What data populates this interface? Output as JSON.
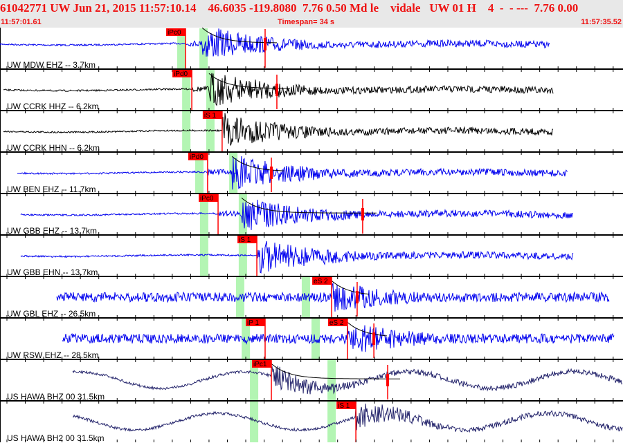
{
  "header": {
    "title": "61042771 UW Jun 21, 2015 11:57:10.14    46.6035 -119.8080  7.76 0.50 Md le    vidale   UW 01 H    4  -  - ---  7.76 0.00",
    "start_time": "11:57:01.61",
    "timespan_label": "Timespan=",
    "timespan_value": "34 s",
    "end_time": "11:57:35.52"
  },
  "colors": {
    "header_text": "#ee1111",
    "pick": "#ff0000",
    "window": "#b3f5b3",
    "blue": "#0000ee",
    "black": "#000000",
    "navy": "#22226a",
    "bg_header": "#e8e8e8"
  },
  "window": {
    "start": "11:57:01.61",
    "end": "11:57:35.52"
  },
  "traces": [
    {
      "label": "UW MDW EHZ -- 3.7km",
      "color": "#0000ee",
      "from": "11:57:01.61",
      "to": "11:57:31.56",
      "windows": [
        "11:57:11.33",
        "11:57:12.54"
      ],
      "picks": [
        {
          "label": "iPc0",
          "time": "11:57:11.71"
        }
      ],
      "coda_end": "11:57:16.04",
      "style": "local"
    },
    {
      "label": "UW CCRK HHZ -- 6.2km",
      "color": "#000000",
      "from": "11:57:01.80",
      "to": "11:57:31.75",
      "windows": [
        "11:57:11.60",
        "11:57:12.91"
      ],
      "picks": [
        {
          "label": "iPd0",
          "time": "11:57:12.05"
        }
      ],
      "coda_end": "11:57:16.68",
      "style": "local"
    },
    {
      "label": "UW CCRK HHN -- 6.2km",
      "color": "#000000",
      "from": "11:57:01.80",
      "to": "11:57:31.75",
      "windows": [
        "11:57:11.60",
        "11:57:12.91"
      ],
      "picks": [
        {
          "label": "iS 1",
          "time": "11:57:13.70"
        }
      ],
      "style": "local"
    },
    {
      "label": "UW BEN EHZ -- 11.7km",
      "color": "#0000ee",
      "from": "11:57:02.55",
      "to": "11:57:32.51",
      "windows": [
        "11:57:12.31",
        "11:57:14.16"
      ],
      "picks": [
        {
          "label": "iPd0",
          "time": "11:57:12.91"
        }
      ],
      "coda_end": "11:57:16.38",
      "style": "local"
    },
    {
      "label": "UW GBB EHZ -- 13.7km",
      "color": "#0000ee",
      "from": "11:57:02.74",
      "to": "11:57:32.81",
      "windows": [
        "11:57:12.57",
        "11:57:14.68"
      ],
      "picks": [
        {
          "label": "iPc0",
          "time": "11:57:13.48"
        }
      ],
      "coda_end": "11:57:21.35",
      "style": "local"
    },
    {
      "label": "UW GBB EHN -- 13.7km",
      "color": "#0000ee",
      "from": "11:57:02.74",
      "to": "11:57:32.81",
      "windows": [
        "11:57:12.57",
        "11:57:14.68"
      ],
      "picks": [
        {
          "label": "iS 1",
          "time": "11:57:15.59"
        }
      ],
      "style": "local"
    },
    {
      "label": "UW GBL EHZ -- 26.5km",
      "color": "#0000ee",
      "from": "11:57:04.70",
      "to": "11:57:34.77",
      "windows": [
        "11:57:14.53",
        "11:57:18.11"
      ],
      "picks": [
        {
          "label": "eS 2",
          "time": "11:57:19.66"
        }
      ],
      "coda_end": "11:57:21.05",
      "style": "noisy"
    },
    {
      "label": "UW RSW EHZ -- 28.5km",
      "color": "#0000ee",
      "from": "11:57:05.00",
      "to": "11:57:35.03",
      "windows": [
        "11:57:14.84",
        "11:57:18.64"
      ],
      "picks": [
        {
          "label": "iP 1",
          "time": "11:57:16.04"
        },
        {
          "label": "eS 2",
          "time": "11:57:20.52"
        }
      ],
      "coda_end": "11:57:21.96",
      "style": "noisy"
    },
    {
      "label": "US HAWA BHZ 00 31.5km",
      "color": "#22226a",
      "from": "11:57:05.57",
      "to": "11:57:35.52",
      "windows": [
        "11:57:15.29",
        "11:57:19.51"
      ],
      "picks": [
        {
          "label": "iPc1",
          "time": "11:57:16.38"
        }
      ],
      "coda_end": "11:57:22.71",
      "style": "long"
    },
    {
      "label": "US HAWA BH2 00 31.5km",
      "color": "#22226a",
      "from": "11:57:05.57",
      "to": "11:57:35.52",
      "windows": [
        "11:57:15.29",
        "11:57:19.51"
      ],
      "picks": [
        {
          "label": "iS 1",
          "time": "11:57:20.98"
        }
      ],
      "style": "long"
    }
  ]
}
